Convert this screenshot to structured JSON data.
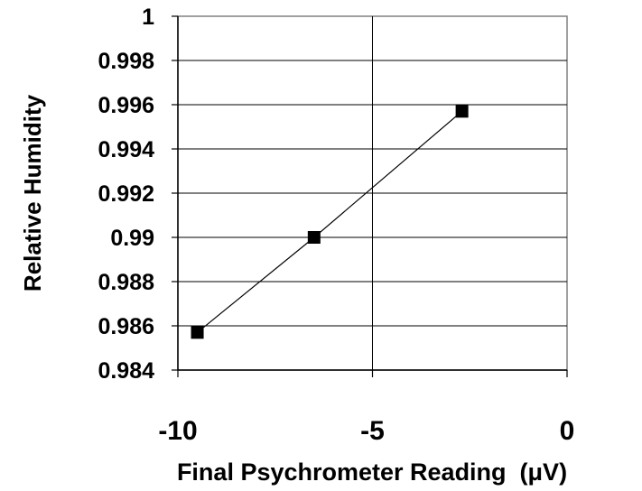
{
  "chart_data": {
    "type": "line",
    "title": "",
    "xlabel": "Final Psychrometer Reading  (μV)",
    "ylabel": "Relative Humidity",
    "xlim": [
      -10,
      0
    ],
    "ylim": [
      0.984,
      1.0
    ],
    "x_ticks": [
      -10,
      -5,
      0
    ],
    "x_tick_labels": [
      "-10",
      "-5",
      "0"
    ],
    "y_ticks": [
      0.984,
      0.986,
      0.988,
      0.99,
      0.992,
      0.994,
      0.996,
      0.998,
      1.0
    ],
    "y_tick_labels": [
      "0.984",
      "0.986",
      "0.988",
      "0.99",
      "0.992",
      "0.994",
      "0.996",
      "0.998",
      "1"
    ],
    "grid": true,
    "legend": "none",
    "series": [
      {
        "marker": "square",
        "color": "#000000",
        "x": [
          -9.5,
          -6.5,
          -2.7
        ],
        "y": [
          0.9857,
          0.99,
          0.9957
        ]
      }
    ]
  }
}
